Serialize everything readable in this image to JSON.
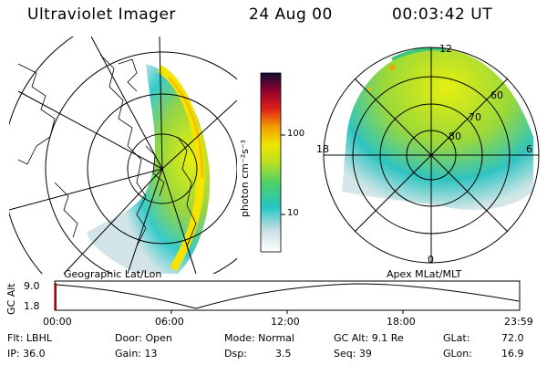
{
  "header": {
    "instrument": "Ultraviolet Imager",
    "date": "24 Aug 00",
    "time": "00:03:42 UT"
  },
  "left_panel": {
    "label": "Geographic Lat/Lon"
  },
  "right_panel": {
    "label": "Apex MLat/MLT",
    "mlt_labels": {
      "top": "12",
      "left": "18",
      "right": "6",
      "bottom": "0"
    },
    "lat_rings": [
      "60",
      "70",
      "80"
    ]
  },
  "colorbar": {
    "unit_label": "photon cm⁻²s⁻¹",
    "ticks": [
      "100",
      "10"
    ]
  },
  "timeline": {
    "ylabel": "GC Alt",
    "ymax_label": "9.0",
    "ymin_label": "1.8",
    "xticks": [
      "00:00",
      "06:00",
      "12:00",
      "18:00",
      "23:59"
    ]
  },
  "status": {
    "flt": "Flt: LBHL",
    "ip": "IP: 36.0",
    "door": "Door: Open",
    "gain": "Gain: 13",
    "mode": "Mode: Normal",
    "dsp_label": "Dsp:",
    "dsp_value": "3.5",
    "gcalt": "GC Alt: 9.1 Re",
    "seq": "Seq: 39",
    "glat_label": "GLat:",
    "glat_value": "72.0",
    "glon_label": "GLon:",
    "glon_value": "16.9"
  },
  "colors": {
    "aurora_bright": "#f2e600",
    "aurora_mid": "#8fd23a",
    "aurora_low": "#2cc8c8",
    "aurora_faint": "#c8dde0"
  }
}
